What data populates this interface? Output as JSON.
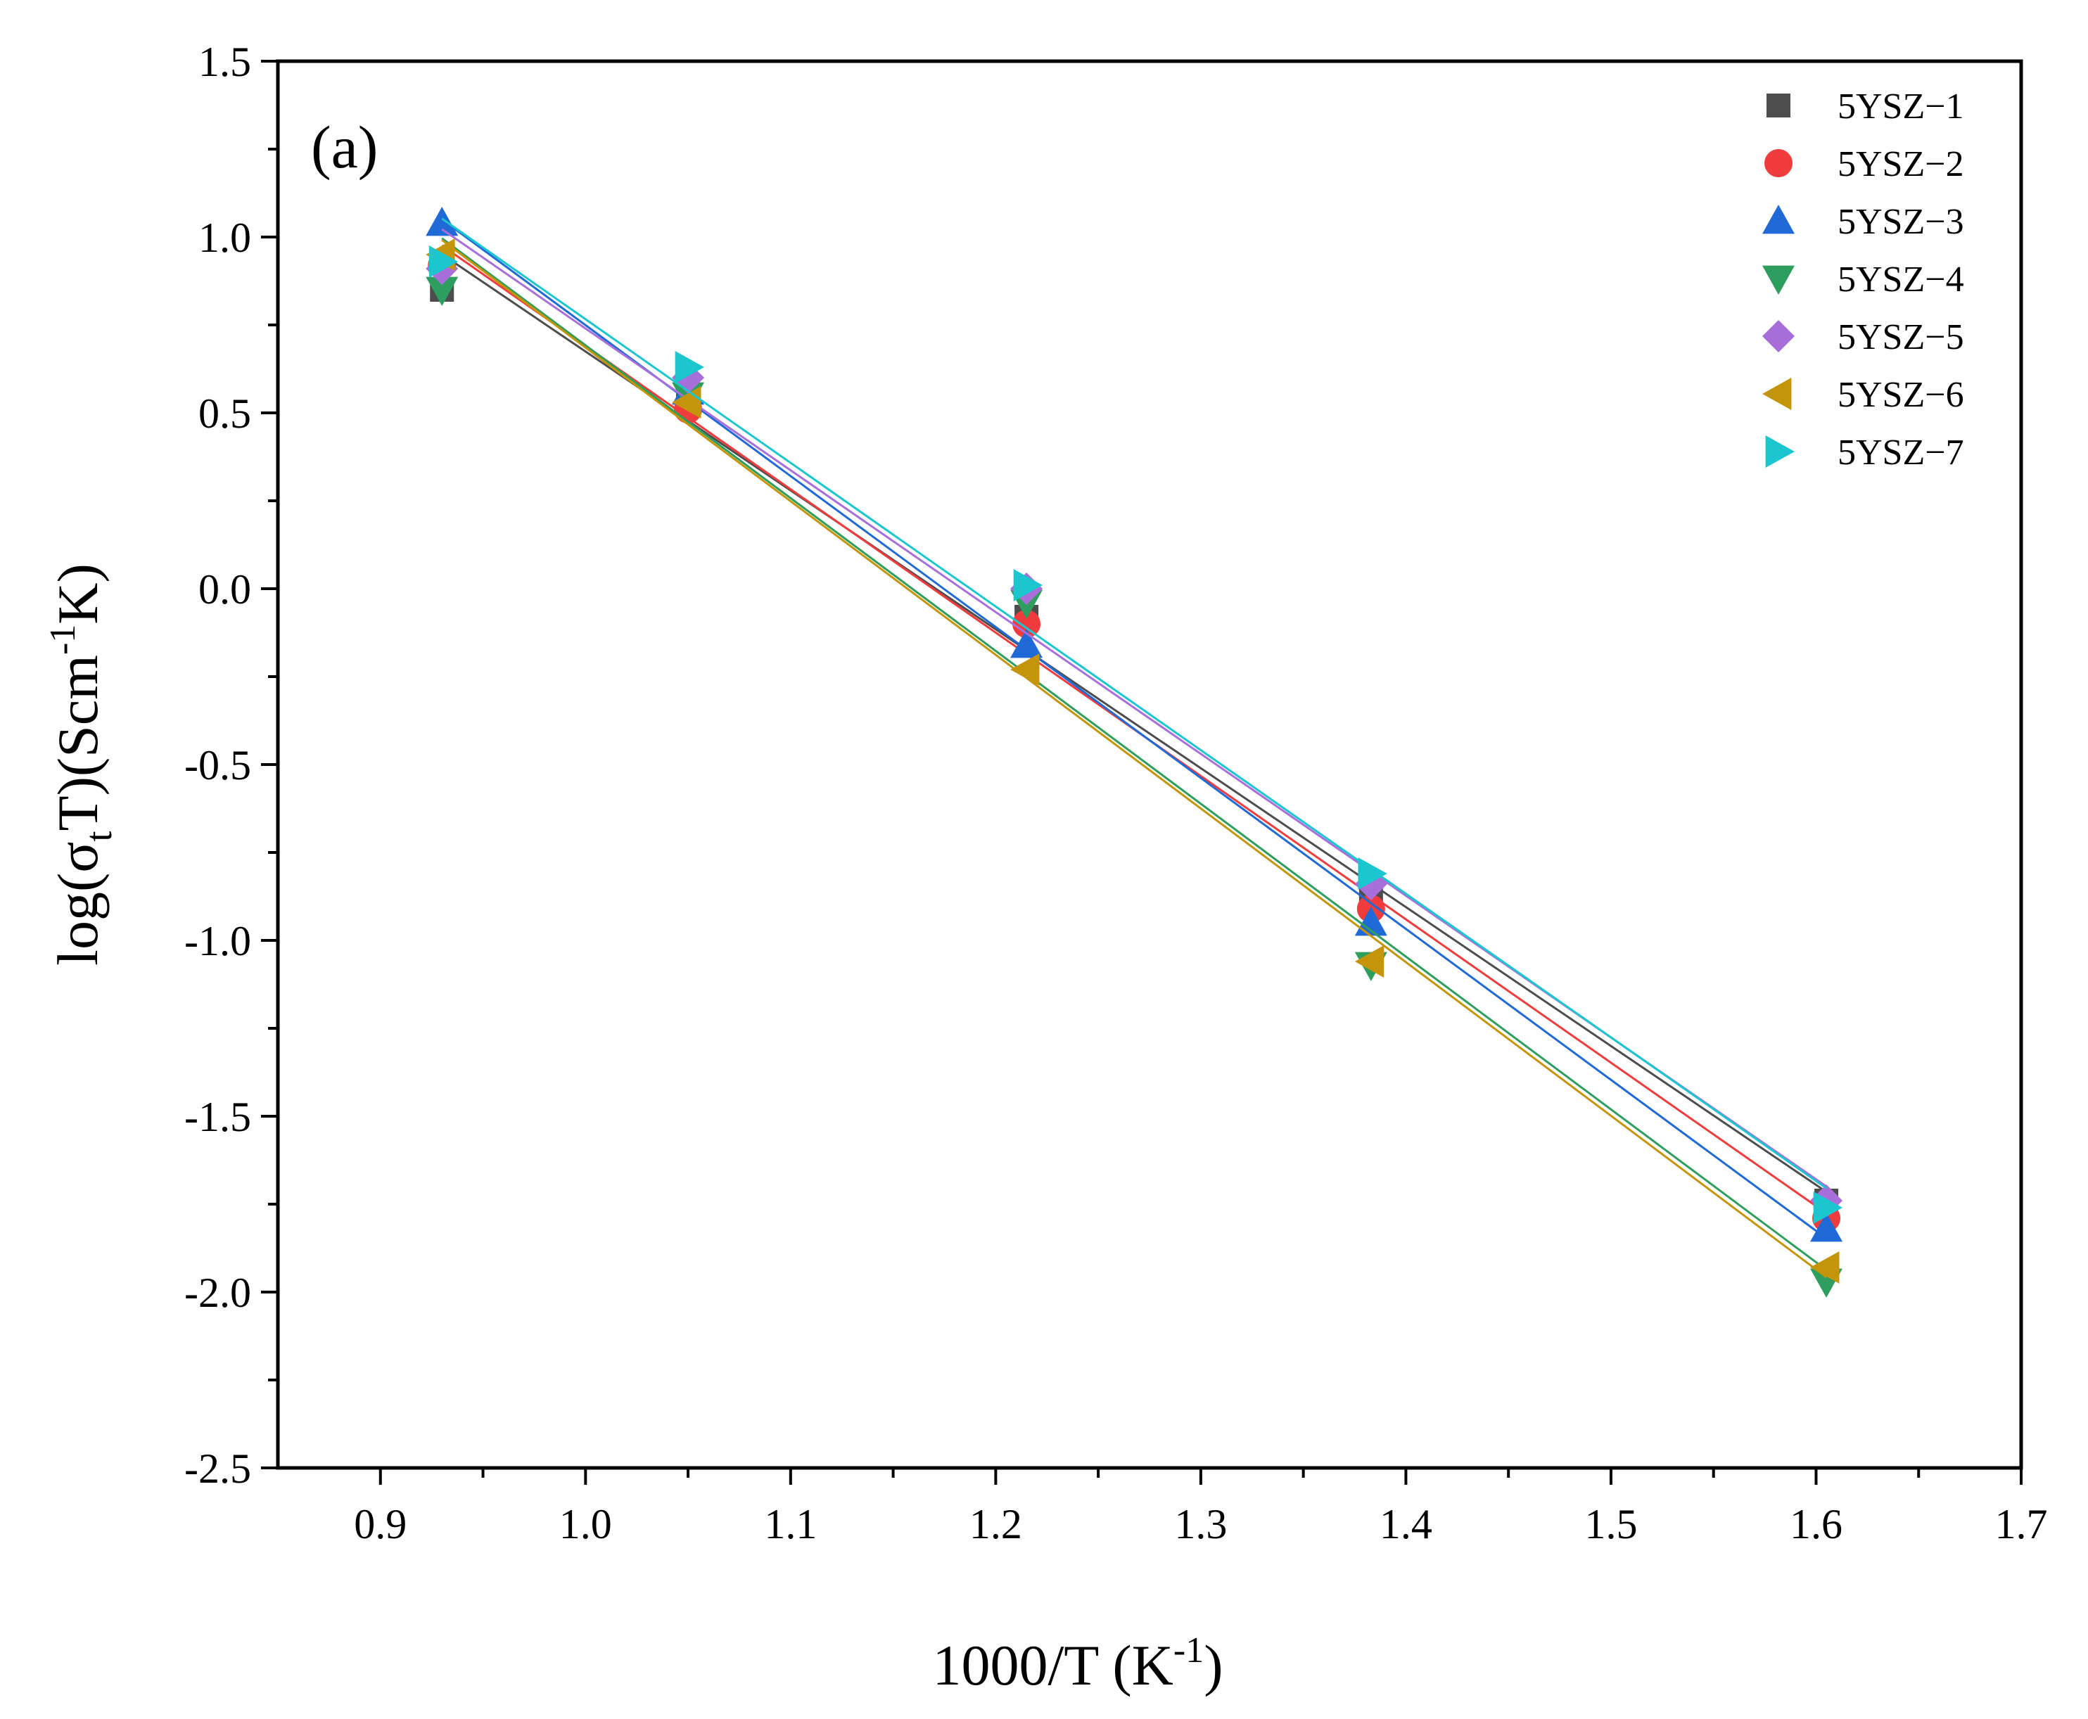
{
  "chart_data": {
    "type": "scatter",
    "panel_label": "(a)",
    "xlabel": {
      "main": "1000/T (K",
      "sup": "-1",
      "tail": ")"
    },
    "ylabel": {
      "pre": "log(σ",
      "sub": "t",
      "mid": "T)(Scm",
      "sup": "-1",
      "tail": "K)"
    },
    "xlim": [
      0.85,
      1.7
    ],
    "ylim": [
      -2.5,
      1.5
    ],
    "xticks": [
      0.9,
      1.0,
      1.1,
      1.2,
      1.3,
      1.4,
      1.5,
      1.6,
      1.7
    ],
    "xtick_labels": [
      "0.9",
      "1.0",
      "1.1",
      "1.2",
      "1.3",
      "1.4",
      "1.5",
      "1.6",
      "1.7"
    ],
    "yticks": [
      1.5,
      1.0,
      0.5,
      0.0,
      -0.5,
      -1.0,
      -1.5,
      -2.0,
      -2.5
    ],
    "ytick_labels": [
      "1.5",
      "1.0",
      "0.5",
      "0.0",
      "-0.5",
      "-1.0",
      "-1.5",
      "-2.0",
      "-2.5"
    ],
    "grid": false,
    "legend_position": "top-right",
    "fit_lines": true,
    "x": [
      0.93,
      1.05,
      1.215,
      1.383,
      1.605
    ],
    "series": [
      {
        "name": "5YSZ−1",
        "marker": "square",
        "color": "#4d4d4d",
        "values": [
          0.85,
          0.55,
          -0.08,
          -0.88,
          -1.74
        ]
      },
      {
        "name": "5YSZ−2",
        "marker": "circle",
        "color": "#f03c3c",
        "values": [
          0.92,
          0.51,
          -0.1,
          -0.91,
          -1.79
        ]
      },
      {
        "name": "5YSZ−3",
        "marker": "triangle-up",
        "color": "#1f6ad6",
        "values": [
          1.04,
          0.56,
          -0.16,
          -0.95,
          -1.82
        ]
      },
      {
        "name": "5YSZ−4",
        "marker": "triangle-down",
        "color": "#2e9e5e",
        "values": [
          0.85,
          0.55,
          -0.04,
          -1.07,
          -1.97
        ]
      },
      {
        "name": "5YSZ−5",
        "marker": "diamond",
        "color": "#a86fdb",
        "values": [
          0.91,
          0.6,
          0.0,
          -0.84,
          -1.74
        ]
      },
      {
        "name": "5YSZ−6",
        "marker": "triangle-left",
        "color": "#c4950a",
        "values": [
          0.95,
          0.53,
          -0.23,
          -1.06,
          -1.93
        ]
      },
      {
        "name": "5YSZ−7",
        "marker": "triangle-right",
        "color": "#1cc6cf",
        "values": [
          0.93,
          0.63,
          0.01,
          -0.81,
          -1.76
        ]
      }
    ]
  }
}
